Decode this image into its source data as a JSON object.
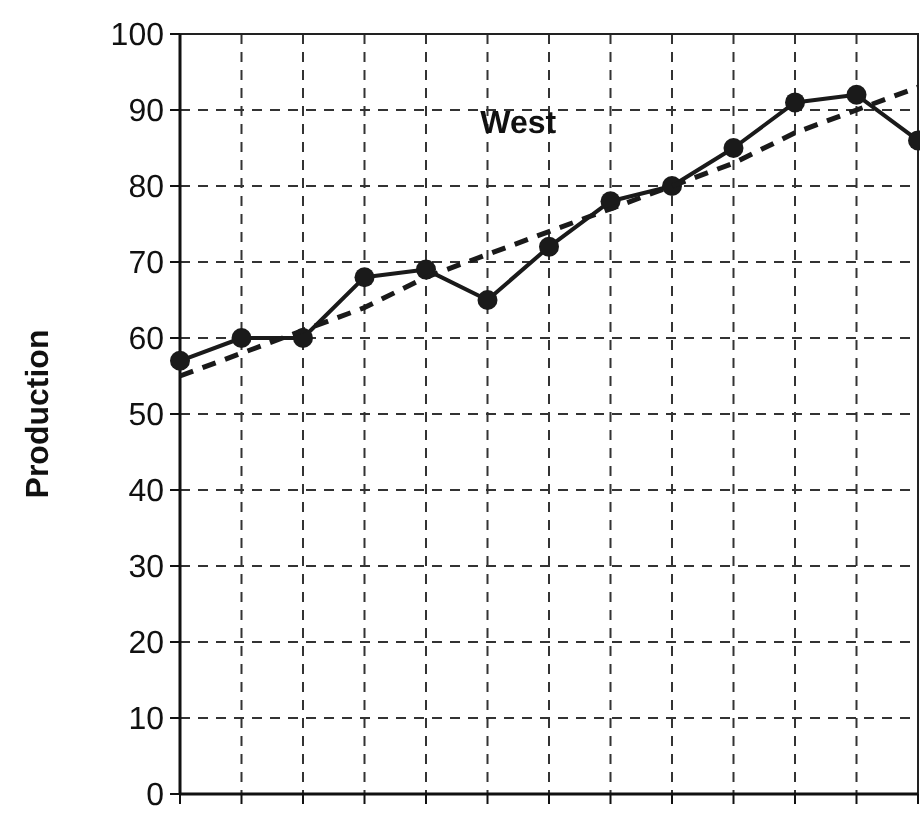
{
  "chart_data": {
    "type": "line",
    "title": "West",
    "ylabel": "Production",
    "categories": [
      null,
      null,
      null,
      null,
      null,
      null,
      null,
      null,
      null,
      null,
      null,
      null,
      null
    ],
    "ylim": [
      0,
      100
    ],
    "yticks": [
      0,
      10,
      20,
      30,
      40,
      50,
      60,
      70,
      80,
      90,
      100
    ],
    "tick_labels": "y",
    "grid": true,
    "series": [
      {
        "color": "#1a1a1a",
        "values": [
          57,
          60,
          60,
          68,
          69,
          65,
          72,
          78,
          80,
          85,
          91,
          92,
          86
        ],
        "marker": "circle",
        "line_style": "solid"
      },
      {
        "color": "#1a1a1a",
        "values": [
          55,
          58,
          61,
          64,
          68,
          71,
          74,
          77,
          80,
          83,
          87,
          90,
          93
        ],
        "marker": "none",
        "line_style": "dashed"
      }
    ]
  }
}
